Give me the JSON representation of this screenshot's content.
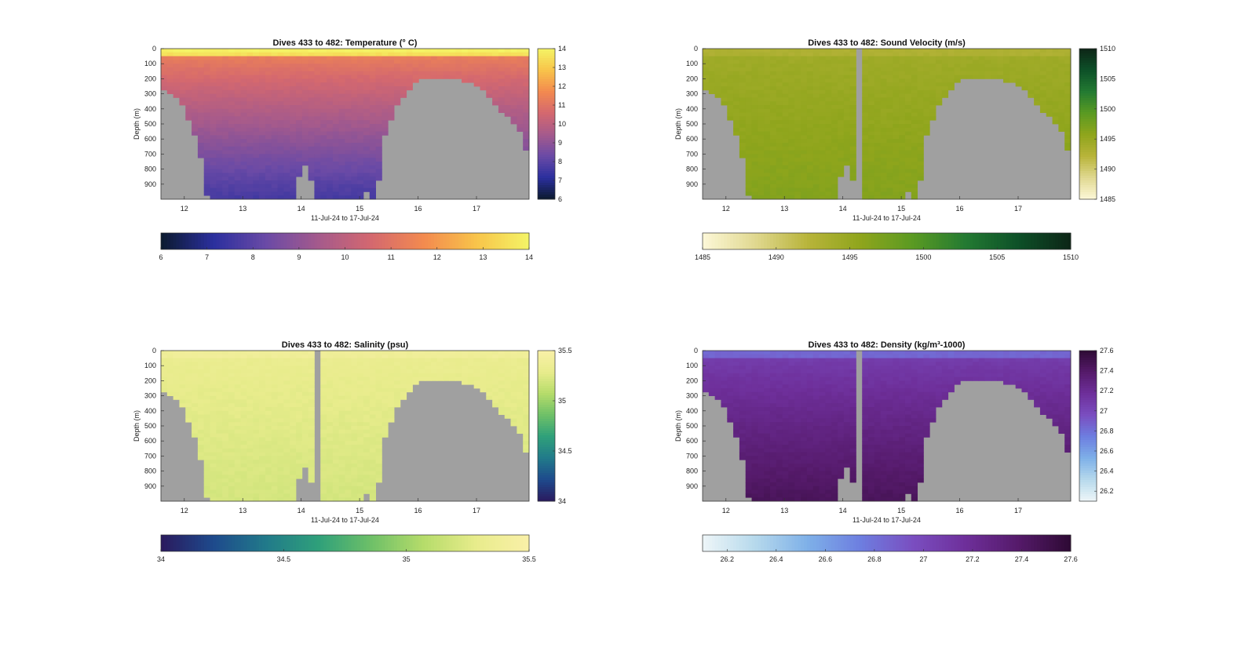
{
  "figure": {
    "xlabel": "11-Jul-24 to 17-Jul-24",
    "ylabel": "Depth (m)"
  },
  "chart_data": [
    {
      "type": "heatmap",
      "title": "Dives 433 to 482: Temperature (° C)",
      "xlabel": "11-Jul-24 to 17-Jul-24",
      "ylabel": "Depth (m)",
      "xlim": [
        11.6,
        17.9
      ],
      "x_ticks": [
        12,
        13,
        14,
        15,
        16,
        17
      ],
      "ylim": [
        0,
        1000
      ],
      "y_ticks": [
        0,
        100,
        200,
        300,
        400,
        500,
        600,
        700,
        800,
        900
      ],
      "colorbar_range": [
        6,
        14
      ],
      "colorbar_ticks": [
        6,
        7,
        8,
        9,
        10,
        11,
        12,
        13,
        14
      ],
      "surface_value": 13.5,
      "deep_value": 7.6,
      "colors": [
        "#0b1a2e",
        "#2b2f9e",
        "#6a4aa6",
        "#a55a8c",
        "#d4686f",
        "#f38a4f",
        "#f8c44a",
        "#f4f466"
      ],
      "missing_color": "#a0a0a0",
      "missing_columns": []
    },
    {
      "type": "heatmap",
      "title": "Dives 433 to 482: Sound Velocity (m/s)",
      "xlabel": "11-Jul-24 to 17-Jul-24",
      "ylabel": "Depth (m)",
      "xlim": [
        11.6,
        17.9
      ],
      "x_ticks": [
        12,
        13,
        14,
        15,
        16,
        17
      ],
      "ylim": [
        0,
        1000
      ],
      "y_ticks": [
        0,
        100,
        200,
        300,
        400,
        500,
        600,
        700,
        800,
        900
      ],
      "colorbar_range": [
        1485,
        1510
      ],
      "colorbar_ticks": [
        1485,
        1490,
        1495,
        1500,
        1505,
        1510
      ],
      "surface_value": 1493,
      "deep_value": 1496.5,
      "colors": [
        "#fdf8d8",
        "#e0d890",
        "#b8b43a",
        "#8fa51c",
        "#5a9a22",
        "#237a32",
        "#0d5028",
        "#0d2516"
      ],
      "missing_color": "#a0a0a0",
      "missing_columns": [
        14.25
      ]
    },
    {
      "type": "heatmap",
      "title": "Dives 433 to 482: Salinity (psu)",
      "xlabel": "11-Jul-24 to 17-Jul-24",
      "ylabel": "Depth (m)",
      "xlim": [
        11.6,
        17.9
      ],
      "x_ticks": [
        12,
        13,
        14,
        15,
        16,
        17
      ],
      "ylim": [
        0,
        1000
      ],
      "y_ticks": [
        0,
        100,
        200,
        300,
        400,
        500,
        600,
        700,
        800,
        900
      ],
      "colorbar_range": [
        34,
        35.5
      ],
      "colorbar_ticks": [
        34,
        34.5,
        35,
        35.5
      ],
      "surface_value": 35.38,
      "deep_value": 35.2,
      "colors": [
        "#2a1a5e",
        "#1e4a8c",
        "#217a8a",
        "#2fa07a",
        "#6ec068",
        "#b6dc6a",
        "#e8ec8c",
        "#f9f0a8"
      ],
      "missing_color": "#a0a0a0",
      "missing_columns": [
        14.25
      ]
    },
    {
      "type": "heatmap",
      "title": "Dives 433 to 482: Density (kg/m³-1000)",
      "xlabel": "11-Jul-24 to 17-Jul-24",
      "ylabel": "Depth (m)",
      "xlim": [
        11.6,
        17.9
      ],
      "x_ticks": [
        12,
        13,
        14,
        15,
        16,
        17
      ],
      "ylim": [
        0,
        1000
      ],
      "y_ticks": [
        0,
        100,
        200,
        300,
        400,
        500,
        600,
        700,
        800,
        900
      ],
      "colorbar_range": [
        26.1,
        27.6
      ],
      "colorbar_ticks": [
        26.2,
        26.4,
        26.6,
        26.8,
        27,
        27.2,
        27.4,
        27.6
      ],
      "surface_value": 26.85,
      "deep_value": 27.45,
      "colors": [
        "#eef6f8",
        "#b6d9ec",
        "#7eb0e8",
        "#6d7ee0",
        "#7a4ec0",
        "#6e2f9a",
        "#551a6a",
        "#2e0a34"
      ],
      "missing_color": "#a0a0a0",
      "missing_columns": [
        14.25
      ]
    }
  ]
}
